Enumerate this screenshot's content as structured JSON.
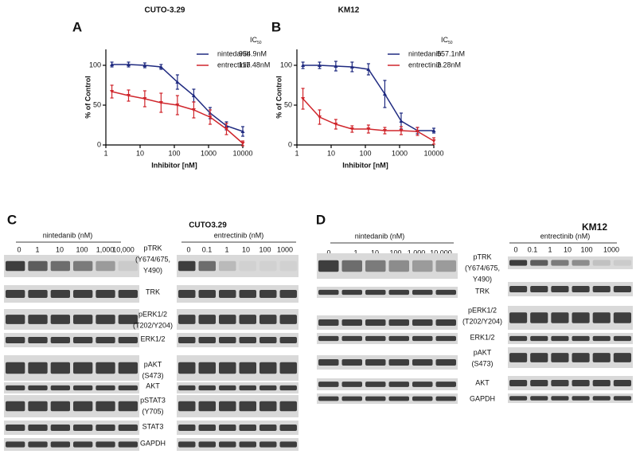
{
  "chart_data": [
    {
      "type": "line",
      "panel": "A",
      "title": "CUTO-3.29",
      "xlabel": "Inhibitor [nM]",
      "ylabel": "% of Control",
      "legend_title": {
        "base": "IC",
        "sub": "50"
      },
      "log_x": true,
      "x": [
        1.5,
        4.6,
        13.7,
        41,
        123,
        370,
        1111,
        3333,
        10000
      ],
      "xlim": [
        1,
        10000
      ],
      "xticks": [
        1,
        10,
        100,
        1000,
        10000
      ],
      "ylim": [
        0,
        120
      ],
      "yticks": [
        0,
        50,
        100
      ],
      "series": [
        {
          "name": "nintedanib",
          "ic50": "954.9nM",
          "color": "#1f2a80",
          "values": [
            101,
            101,
            100,
            98,
            79,
            62,
            40,
            24,
            17
          ],
          "errors": [
            3,
            3,
            3,
            3,
            9,
            8,
            7,
            5,
            6
          ]
        },
        {
          "name": "entrectinib",
          "ic50": "117.48nM",
          "color": "#d0262c",
          "values": [
            67,
            62,
            58,
            53,
            50,
            44,
            35,
            20,
            2
          ],
          "errors": [
            8,
            7,
            10,
            12,
            12,
            10,
            9,
            7,
            3
          ]
        }
      ]
    },
    {
      "type": "line",
      "panel": "B",
      "title": "KM12",
      "xlabel": "Inhibitor [nM]",
      "ylabel": "% of Control",
      "legend_title": {
        "base": "IC",
        "sub": "50"
      },
      "log_x": true,
      "x": [
        1.5,
        4.6,
        13.7,
        41,
        123,
        370,
        1111,
        3333,
        10000
      ],
      "xlim": [
        1,
        10000
      ],
      "xticks": [
        1,
        10,
        100,
        1000,
        10000
      ],
      "ylim": [
        0,
        120
      ],
      "yticks": [
        0,
        50,
        100
      ],
      "series": [
        {
          "name": "nintedanib",
          "ic50": "557.1nM",
          "color": "#1f2a80",
          "values": [
            100,
            100,
            99,
            98,
            95,
            64,
            30,
            18,
            18
          ],
          "errors": [
            4,
            4,
            6,
            6,
            7,
            17,
            10,
            4,
            3
          ]
        },
        {
          "name": "entrectinib",
          "ic50": "2.28nM",
          "color": "#d0262c",
          "values": [
            58,
            35,
            26,
            20,
            20,
            18,
            18,
            17,
            5
          ],
          "errors": [
            13,
            9,
            6,
            4,
            5,
            4,
            5,
            5,
            4
          ]
        }
      ]
    }
  ],
  "blots": [
    {
      "panel": "C",
      "title": "CUTO3.29",
      "groups": [
        {
          "drug": "nintedanib (nM)",
          "doses": [
            "0",
            "1",
            "10",
            "100",
            "1,000",
            "10,000"
          ]
        },
        {
          "drug": "entrectinib (nM)",
          "doses": [
            "0",
            "0.1",
            "1",
            "10",
            "100",
            "1000"
          ]
        }
      ],
      "rows": [
        [
          "pTRK",
          "(Y674/675,",
          "Y490)"
        ],
        [
          "TRK"
        ],
        [
          "pERK1/2",
          "(T202/Y204)"
        ],
        [
          "ERK1/2"
        ],
        [
          "pAKT",
          "(S473)"
        ],
        [
          "AKT"
        ],
        [
          "pSTAT3",
          "(Y705)"
        ],
        [
          "STAT3"
        ],
        [
          "GAPDH"
        ]
      ]
    },
    {
      "panel": "D",
      "title": "KM12",
      "groups": [
        {
          "drug": "nintedanib (nM)",
          "doses": [
            "0",
            "1",
            "10",
            "100",
            "1,000",
            "10,000"
          ]
        },
        {
          "drug": "entrectinib (nM)",
          "doses": [
            "0",
            "0.1",
            "1",
            "10",
            "100",
            "1000"
          ]
        }
      ],
      "rows": [
        [
          "pTRK",
          "(Y674/675,",
          "Y490)"
        ],
        [
          "TRK"
        ],
        [
          "pERK1/2",
          "(T202/Y204)"
        ],
        [
          "ERK1/2"
        ],
        [
          "pAKT",
          "(S473)"
        ],
        [
          "AKT"
        ],
        [
          "GAPDH"
        ]
      ]
    }
  ]
}
